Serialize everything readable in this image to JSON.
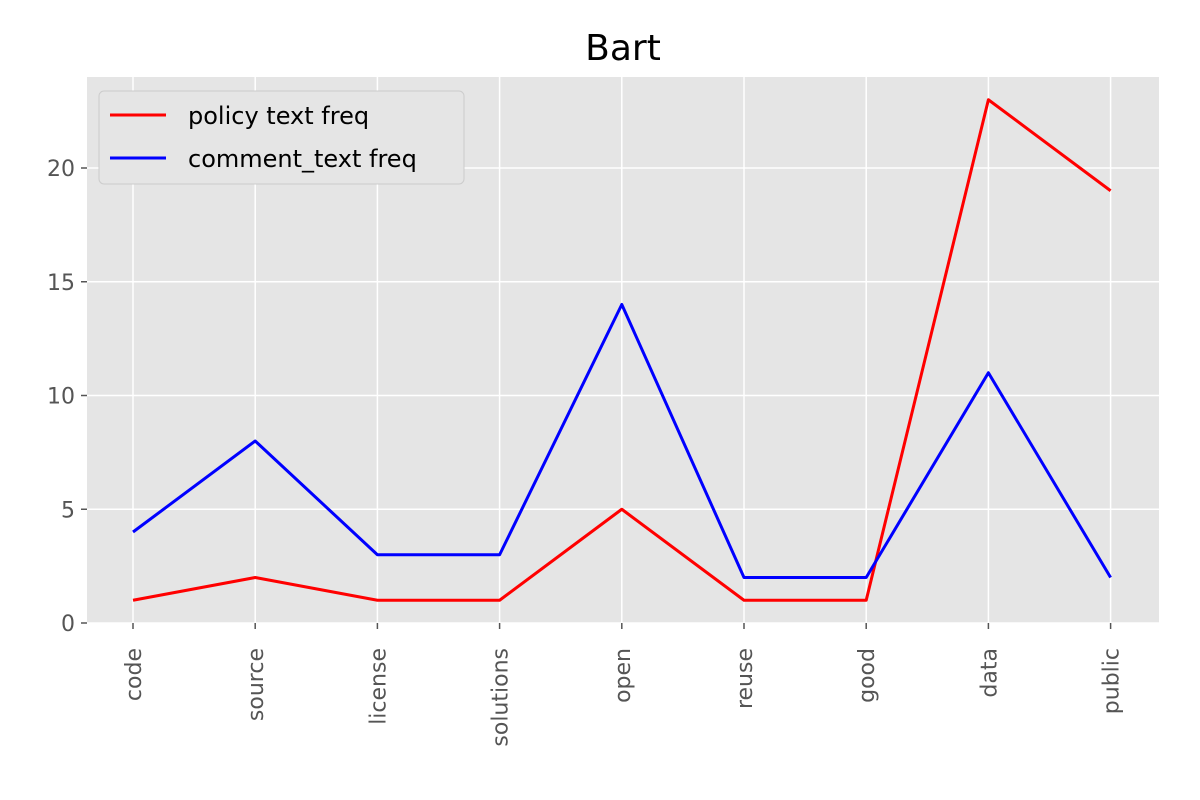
{
  "chart_data": {
    "type": "line",
    "title": "Bart",
    "xlabel": "",
    "ylabel": "",
    "categories": [
      "code",
      "source",
      "license",
      "solutions",
      "open",
      "reuse",
      "good",
      "data",
      "public"
    ],
    "series": [
      {
        "name": "policy text freq",
        "color": "#ff0000",
        "values": [
          1,
          2,
          1,
          1,
          5,
          1,
          1,
          23,
          19
        ]
      },
      {
        "name": "comment_text freq",
        "color": "#0000ff",
        "values": [
          4,
          8,
          3,
          3,
          14,
          2,
          2,
          11,
          2
        ]
      }
    ],
    "yticks": [
      0,
      5,
      10,
      15,
      20
    ],
    "ylim": [
      0,
      24
    ],
    "grid": true,
    "legend_position": "top-left",
    "style": {
      "plot_bg": "#e5e5e5",
      "grid_color": "#ffffff"
    }
  }
}
